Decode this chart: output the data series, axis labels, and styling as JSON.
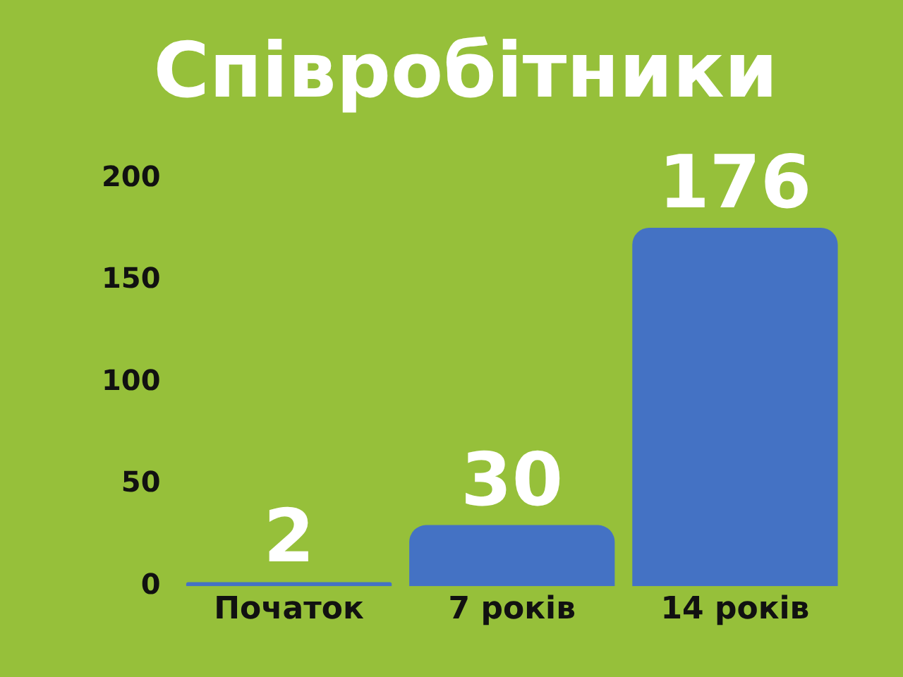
{
  "chart_data": {
    "type": "bar",
    "title": "Співробітники",
    "categories": [
      "Початок",
      "7 років",
      "14 років"
    ],
    "values": [
      2,
      30,
      176
    ],
    "color": "#4472c4",
    "ylim": [
      0,
      200
    ],
    "yticks": [
      0,
      50,
      100,
      150,
      200
    ],
    "grid": false,
    "legend": false,
    "data_labels": true
  }
}
